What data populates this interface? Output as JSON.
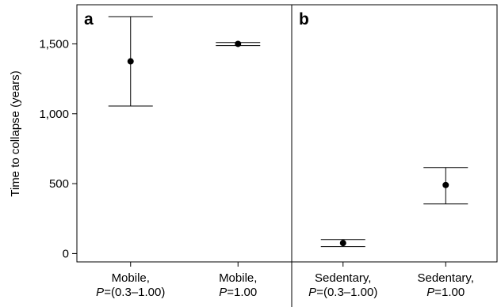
{
  "chart_data": {
    "type": "scatter",
    "ylabel": "Time to collapse (years)",
    "ylim": [
      -60,
      1780
    ],
    "yticks": [
      0,
      500,
      1000,
      1500
    ],
    "ytick_labels": [
      "0",
      "500",
      "1,000",
      "1,500"
    ],
    "errorbars": true,
    "grid": false,
    "panels": [
      {
        "label": "a",
        "categories": [
          {
            "line1": "Mobile,",
            "line2_italic": "P",
            "line2_rest": "=(0.3–1.00)"
          },
          {
            "line1": "Mobile,",
            "line2_italic": "P",
            "line2_rest": "=1.00"
          }
        ],
        "points": [
          {
            "mean": 1375,
            "lower": 1055,
            "upper": 1695
          },
          {
            "mean": 1500,
            "lower": 1488,
            "upper": 1510
          }
        ]
      },
      {
        "label": "b",
        "categories": [
          {
            "line1": "Sedentary,",
            "line2_italic": "P",
            "line2_rest": "=(0.3–1.00)"
          },
          {
            "line1": "Sedentary,",
            "line2_italic": "P",
            "line2_rest": "=1.00"
          }
        ],
        "points": [
          {
            "mean": 75,
            "lower": 50,
            "upper": 100
          },
          {
            "mean": 490,
            "lower": 355,
            "upper": 615
          }
        ]
      }
    ]
  }
}
